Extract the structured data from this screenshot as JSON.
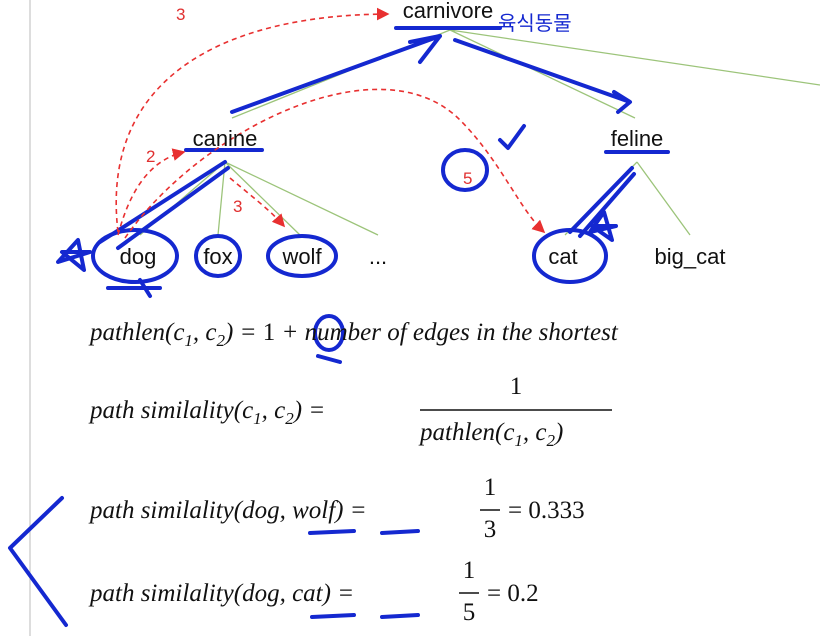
{
  "tree": {
    "nodes": [
      "carnivore",
      "canine",
      "feline",
      "dog",
      "fox",
      "wolf",
      "...",
      "cat",
      "big_cat"
    ],
    "annotations": [
      "3",
      "2",
      "3",
      "5",
      "육식동물"
    ]
  },
  "formulas": [
    [
      "pathlen(c",
      "1",
      ", c",
      "2",
      ") =",
      "1",
      "+ number of edges in the shortest"
    ],
    [
      "path similality(c",
      "1",
      ", c",
      "2",
      ") =",
      "1",
      "pathlen(c",
      "1",
      ", c",
      "2",
      ")"
    ],
    [
      "path similality(",
      "dog",
      ", ",
      "wolf",
      ") =",
      "1",
      "3",
      "= 0.333"
    ],
    [
      "path similality(",
      "dog",
      ", ",
      "cat",
      ") =",
      "1",
      "5",
      "= 0.2"
    ]
  ]
}
